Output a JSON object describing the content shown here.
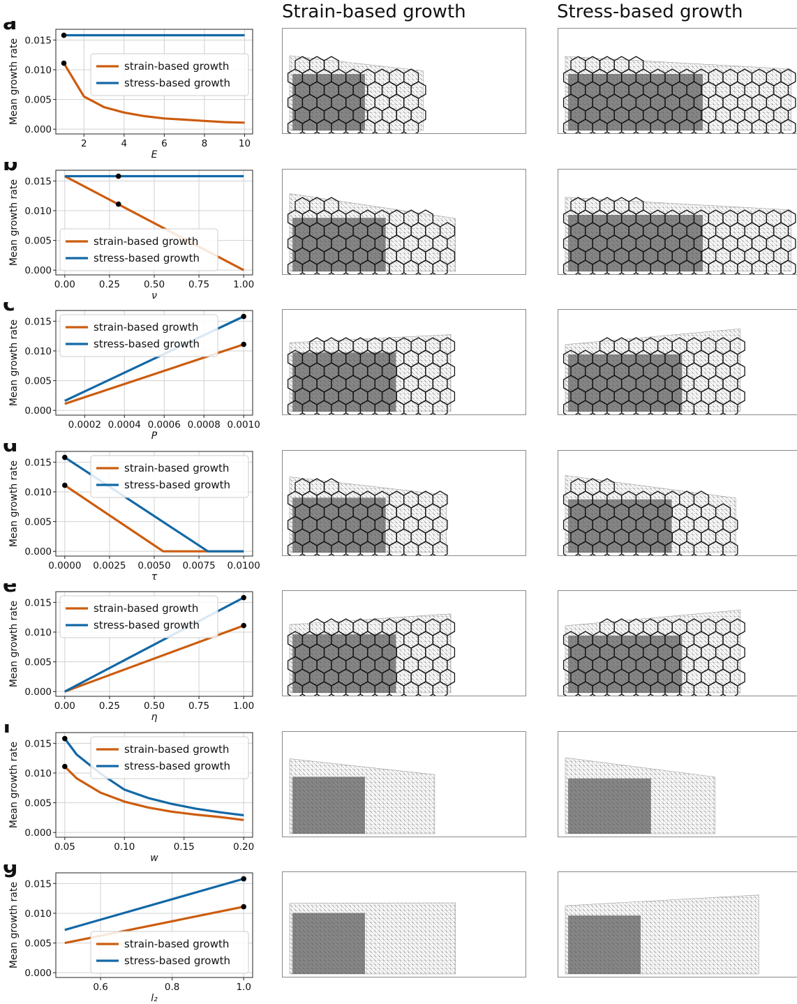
{
  "columns": {
    "strain": "Strain-based growth",
    "stress": "Stress-based growth"
  },
  "colors": {
    "strain": "#cc5c0e",
    "stress": "#1268a6",
    "marker": "#000000",
    "grid": "#d0d0d0"
  },
  "chart_data": [
    {
      "type": "line",
      "panel": "a",
      "xlabel": "E",
      "ylabel": "Mean growth rate",
      "xlim": [
        0.6,
        10.4
      ],
      "ylim": [
        -0.0008,
        0.0168
      ],
      "xticks": [
        2,
        4,
        6,
        8,
        10
      ],
      "xtick_labels": [
        "2",
        "4",
        "6",
        "8",
        "10"
      ],
      "yticks": [
        0,
        0.005,
        0.01,
        0.015
      ],
      "ytick_labels": [
        "0.000",
        "0.005",
        "0.010",
        "0.015"
      ],
      "legend_position": "center-right",
      "series": [
        {
          "name": "strain-based growth",
          "key": "strain",
          "x": [
            1,
            2,
            3,
            4,
            5,
            6,
            7,
            8,
            9,
            10
          ],
          "y": [
            0.0111,
            0.0055,
            0.0037,
            0.0028,
            0.0022,
            0.0018,
            0.0016,
            0.0014,
            0.0012,
            0.0011
          ]
        },
        {
          "name": "stress-based growth",
          "key": "stress",
          "x": [
            1,
            10
          ],
          "y": [
            0.0158,
            0.0158
          ]
        }
      ],
      "markers": [
        {
          "x": 1,
          "y": 0.0158
        },
        {
          "x": 1,
          "y": 0.0111
        }
      ]
    },
    {
      "type": "line",
      "panel": "b",
      "xlabel": "ν",
      "ylabel": "Mean growth rate",
      "xlim": [
        -0.05,
        1.05
      ],
      "ylim": [
        -0.0008,
        0.0168
      ],
      "xticks": [
        0,
        0.25,
        0.5,
        0.75,
        1.0
      ],
      "xtick_labels": [
        "0.00",
        "0.25",
        "0.50",
        "0.75",
        "1.00"
      ],
      "yticks": [
        0,
        0.005,
        0.01,
        0.015
      ],
      "ytick_labels": [
        "0.000",
        "0.005",
        "0.010",
        "0.015"
      ],
      "legend_position": "lower-left",
      "series": [
        {
          "name": "strain-based growth",
          "key": "strain",
          "x": [
            0,
            1
          ],
          "y": [
            0.0158,
            0.0
          ]
        },
        {
          "name": "stress-based growth",
          "key": "stress",
          "x": [
            0,
            1
          ],
          "y": [
            0.0158,
            0.0158
          ]
        }
      ],
      "markers": [
        {
          "x": 0.3,
          "y": 0.0158
        },
        {
          "x": 0.3,
          "y": 0.0111
        }
      ]
    },
    {
      "type": "line",
      "panel": "c",
      "xlabel": "P",
      "ylabel": "Mean growth rate",
      "xlim": [
        5.5e-05,
        0.001045
      ],
      "ylim": [
        -0.0008,
        0.0168
      ],
      "xticks": [
        0.0002,
        0.0004,
        0.0006,
        0.0008,
        0.001
      ],
      "xtick_labels": [
        "0.0002",
        "0.0004",
        "0.0006",
        "0.0008",
        "0.0010"
      ],
      "yticks": [
        0,
        0.005,
        0.01,
        0.015
      ],
      "ytick_labels": [
        "0.000",
        "0.005",
        "0.010",
        "0.015"
      ],
      "legend_position": "upper-left",
      "series": [
        {
          "name": "strain-based growth",
          "key": "strain",
          "x": [
            0.0001,
            0.001
          ],
          "y": [
            0.0011,
            0.0111
          ]
        },
        {
          "name": "stress-based growth",
          "key": "stress",
          "x": [
            0.0001,
            0.001
          ],
          "y": [
            0.0016,
            0.0158
          ]
        }
      ],
      "markers": [
        {
          "x": 0.001,
          "y": 0.0158
        },
        {
          "x": 0.001,
          "y": 0.0111
        }
      ]
    },
    {
      "type": "line",
      "panel": "d",
      "xlabel": "τ",
      "ylabel": "Mean growth rate",
      "xlim": [
        -0.0005,
        0.0105
      ],
      "ylim": [
        -0.0008,
        0.0168
      ],
      "xticks": [
        0,
        0.0025,
        0.005,
        0.0075,
        0.01
      ],
      "xtick_labels": [
        "0.0000",
        "0.0025",
        "0.0050",
        "0.0075",
        "0.0100"
      ],
      "yticks": [
        0,
        0.005,
        0.01,
        0.015
      ],
      "ytick_labels": [
        "0.000",
        "0.005",
        "0.010",
        "0.015"
      ],
      "legend_position": "upper-right",
      "series": [
        {
          "name": "strain-based growth",
          "key": "strain",
          "x": [
            0,
            0.0055,
            0.01
          ],
          "y": [
            0.0111,
            0.0,
            0.0
          ]
        },
        {
          "name": "stress-based growth",
          "key": "stress",
          "x": [
            0,
            0.008,
            0.01
          ],
          "y": [
            0.0158,
            0.0,
            0.0
          ]
        }
      ],
      "markers": [
        {
          "x": 0,
          "y": 0.0158
        },
        {
          "x": 0,
          "y": 0.0111
        }
      ]
    },
    {
      "type": "line",
      "panel": "e",
      "xlabel": "η",
      "ylabel": "Mean growth rate",
      "xlim": [
        -0.05,
        1.05
      ],
      "ylim": [
        -0.0008,
        0.0168
      ],
      "xticks": [
        0,
        0.25,
        0.5,
        0.75,
        1.0
      ],
      "xtick_labels": [
        "0.00",
        "0.25",
        "0.50",
        "0.75",
        "1.00"
      ],
      "yticks": [
        0,
        0.005,
        0.01,
        0.015
      ],
      "ytick_labels": [
        "0.000",
        "0.005",
        "0.010",
        "0.015"
      ],
      "legend_position": "upper-left",
      "series": [
        {
          "name": "strain-based growth",
          "key": "strain",
          "x": [
            0,
            1
          ],
          "y": [
            0.0,
            0.0111
          ]
        },
        {
          "name": "stress-based growth",
          "key": "stress",
          "x": [
            0,
            1
          ],
          "y": [
            0.0,
            0.0158
          ]
        }
      ],
      "markers": [
        {
          "x": 1,
          "y": 0.0158
        },
        {
          "x": 1,
          "y": 0.0111
        }
      ]
    },
    {
      "type": "line",
      "panel": "f",
      "xlabel": "w",
      "ylabel": "Mean growth rate",
      "xlim": [
        0.0425,
        0.2075
      ],
      "ylim": [
        -0.0008,
        0.0168
      ],
      "xticks": [
        0.05,
        0.1,
        0.15,
        0.2
      ],
      "xtick_labels": [
        "0.05",
        "0.10",
        "0.15",
        "0.20"
      ],
      "yticks": [
        0,
        0.005,
        0.01,
        0.015
      ],
      "ytick_labels": [
        "0.000",
        "0.005",
        "0.010",
        "0.015"
      ],
      "legend_position": "upper-right",
      "series": [
        {
          "name": "strain-based growth",
          "key": "strain",
          "x": [
            0.05,
            0.06,
            0.08,
            0.1,
            0.12,
            0.14,
            0.16,
            0.18,
            0.2
          ],
          "y": [
            0.0111,
            0.0091,
            0.0067,
            0.0052,
            0.0042,
            0.0035,
            0.003,
            0.0026,
            0.0021
          ]
        },
        {
          "name": "stress-based growth",
          "key": "stress",
          "x": [
            0.05,
            0.06,
            0.08,
            0.1,
            0.12,
            0.14,
            0.16,
            0.18,
            0.2
          ],
          "y": [
            0.0158,
            0.0131,
            0.0099,
            0.0072,
            0.0058,
            0.0048,
            0.004,
            0.0034,
            0.0029
          ]
        }
      ],
      "markers": [
        {
          "x": 0.05,
          "y": 0.0158
        },
        {
          "x": 0.05,
          "y": 0.0111
        }
      ]
    },
    {
      "type": "line",
      "panel": "g",
      "xlabel": "l₂",
      "ylabel": "Mean growth rate",
      "xlim": [
        0.475,
        1.025
      ],
      "ylim": [
        -0.0008,
        0.0168
      ],
      "xticks": [
        0.6,
        0.8,
        1.0
      ],
      "xtick_labels": [
        "0.6",
        "0.8",
        "1.0"
      ],
      "yticks": [
        0,
        0.005,
        0.01,
        0.015
      ],
      "ytick_labels": [
        "0.000",
        "0.005",
        "0.010",
        "0.015"
      ],
      "legend_position": "lower-right",
      "series": [
        {
          "name": "strain-based growth",
          "key": "strain",
          "x": [
            0.5,
            1.0
          ],
          "y": [
            0.005,
            0.0111
          ]
        },
        {
          "name": "stress-based growth",
          "key": "stress",
          "x": [
            0.5,
            1.0
          ],
          "y": [
            0.0072,
            0.0158
          ]
        }
      ],
      "markers": [
        {
          "x": 1,
          "y": 0.0158
        },
        {
          "x": 1,
          "y": 0.0111
        }
      ]
    }
  ],
  "simulations": [
    {
      "panel": "a",
      "strain": {
        "cells": true,
        "extent": 0.58,
        "growth": 0.35,
        "tilt": 0.12
      },
      "stress": {
        "cells": true,
        "extent": 0.98,
        "growth": 0.65,
        "tilt": 0.0
      }
    },
    {
      "panel": "b",
      "strain": {
        "cells": true,
        "extent": 0.72,
        "growth": 0.45,
        "tilt": 0.55
      },
      "stress": {
        "cells": true,
        "extent": 0.98,
        "growth": 0.65,
        "tilt": 0.0
      }
    },
    {
      "panel": "c",
      "strain": {
        "cells": true,
        "extent": 0.7,
        "growth": 0.5,
        "tilt": -0.4
      },
      "stress": {
        "cells": true,
        "extent": 0.76,
        "growth": 0.55,
        "tilt": -0.55
      }
    },
    {
      "panel": "d",
      "strain": {
        "cells": true,
        "extent": 0.68,
        "growth": 0.45,
        "tilt": 0.25
      },
      "stress": {
        "cells": true,
        "extent": 0.74,
        "growth": 0.5,
        "tilt": 0.45
      }
    },
    {
      "panel": "e",
      "strain": {
        "cells": true,
        "extent": 0.7,
        "growth": 0.5,
        "tilt": -0.45
      },
      "stress": {
        "cells": true,
        "extent": 0.76,
        "growth": 0.55,
        "tilt": -0.55
      }
    },
    {
      "panel": "f",
      "strain": {
        "cells": false,
        "extent": 0.63,
        "growth": 0.35,
        "tilt": 0.15
      },
      "stress": {
        "cells": false,
        "extent": 0.65,
        "growth": 0.4,
        "tilt": 0.3
      }
    },
    {
      "panel": "g",
      "strain": {
        "cells": false,
        "extent": 0.72,
        "growth": 0.35,
        "tilt": -0.25
      },
      "stress": {
        "cells": false,
        "extent": 0.84,
        "growth": 0.35,
        "tilt": -0.45
      }
    }
  ]
}
